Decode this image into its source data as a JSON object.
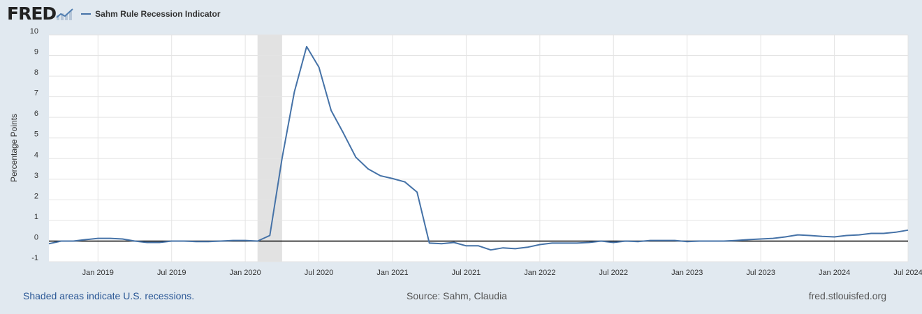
{
  "header": {
    "logo": "FRED",
    "series_name": "Sahm Rule Recession Indicator",
    "series_color": "#4572a7"
  },
  "footer": {
    "recession_note": "Shaded areas indicate U.S. recessions.",
    "source": "Source: Sahm, Claudia",
    "site": "fred.stlouisfed.org"
  },
  "chart_data": {
    "type": "line",
    "title": "",
    "ylabel": "Percentage Points",
    "xlabel": "",
    "ylim": [
      -1,
      10
    ],
    "yticks": [
      10,
      9,
      8,
      7,
      6,
      5,
      4,
      3,
      2,
      1,
      0,
      -1
    ],
    "xlim": [
      "2018-09",
      "2024-07"
    ],
    "xticks": [
      {
        "label": "Jan 2019",
        "date": "2019-01"
      },
      {
        "label": "Jul 2019",
        "date": "2019-07"
      },
      {
        "label": "Jan 2020",
        "date": "2020-01"
      },
      {
        "label": "Jul 2020",
        "date": "2020-07"
      },
      {
        "label": "Jan 2021",
        "date": "2021-01"
      },
      {
        "label": "Jul 2021",
        "date": "2021-07"
      },
      {
        "label": "Jan 2022",
        "date": "2022-01"
      },
      {
        "label": "Jul 2022",
        "date": "2022-07"
      },
      {
        "label": "Jan 2023",
        "date": "2023-01"
      },
      {
        "label": "Jul 2023",
        "date": "2023-07"
      },
      {
        "label": "Jan 2024",
        "date": "2024-01"
      },
      {
        "label": "Jul 2024",
        "date": "2024-07"
      }
    ],
    "grid": true,
    "zero_line": true,
    "recession_shading": [
      {
        "start": "2020-02",
        "end": "2020-04"
      }
    ],
    "series": [
      {
        "name": "Sahm Rule Recession Indicator",
        "color": "#4572a7",
        "x": [
          "2018-09",
          "2018-10",
          "2018-11",
          "2018-12",
          "2019-01",
          "2019-02",
          "2019-03",
          "2019-04",
          "2019-05",
          "2019-06",
          "2019-07",
          "2019-08",
          "2019-09",
          "2019-10",
          "2019-11",
          "2019-12",
          "2020-01",
          "2020-02",
          "2020-03",
          "2020-04",
          "2020-05",
          "2020-06",
          "2020-07",
          "2020-08",
          "2020-09",
          "2020-10",
          "2020-11",
          "2020-12",
          "2021-01",
          "2021-02",
          "2021-03",
          "2021-04",
          "2021-05",
          "2021-06",
          "2021-07",
          "2021-08",
          "2021-09",
          "2021-10",
          "2021-11",
          "2021-12",
          "2022-01",
          "2022-02",
          "2022-03",
          "2022-04",
          "2022-05",
          "2022-06",
          "2022-07",
          "2022-08",
          "2022-09",
          "2022-10",
          "2022-11",
          "2022-12",
          "2023-01",
          "2023-02",
          "2023-03",
          "2023-04",
          "2023-05",
          "2023-06",
          "2023-07",
          "2023-08",
          "2023-09",
          "2023-10",
          "2023-11",
          "2023-12",
          "2024-01",
          "2024-02",
          "2024-03",
          "2024-04",
          "2024-05",
          "2024-06",
          "2024-07"
        ],
        "y": [
          -0.13,
          0.0,
          0.0,
          0.07,
          0.13,
          0.13,
          0.1,
          0.0,
          -0.07,
          -0.07,
          0.0,
          0.0,
          -0.03,
          -0.03,
          0.0,
          0.03,
          0.03,
          0.0,
          0.27,
          4.03,
          7.23,
          9.43,
          8.43,
          6.33,
          5.23,
          4.07,
          3.5,
          3.17,
          3.03,
          2.87,
          2.37,
          -0.1,
          -0.13,
          -0.07,
          -0.23,
          -0.23,
          -0.43,
          -0.33,
          -0.37,
          -0.3,
          -0.17,
          -0.1,
          -0.1,
          -0.1,
          -0.07,
          0.0,
          -0.07,
          0.0,
          -0.03,
          0.03,
          0.03,
          0.03,
          -0.03,
          0.0,
          0.0,
          0.0,
          0.03,
          0.07,
          0.1,
          0.13,
          0.2,
          0.3,
          0.27,
          0.23,
          0.2,
          0.27,
          0.3,
          0.37,
          0.37,
          0.43,
          0.53
        ]
      }
    ]
  }
}
